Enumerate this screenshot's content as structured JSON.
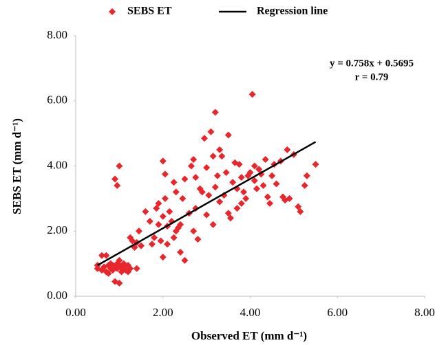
{
  "chart_data": {
    "type": "scatter",
    "x_label": "Observed ET (mm d⁻¹)",
    "y_label": "SEBS ET (mm d⁻¹)",
    "annotations": [
      "y = 0.758x + 0.5695",
      "r = 0.79"
    ],
    "xlim": [
      0,
      8
    ],
    "ylim": [
      0,
      8
    ],
    "xticks": [
      {
        "value": 0,
        "label": "0.00"
      },
      {
        "value": 2,
        "label": "2.00"
      },
      {
        "value": 4,
        "label": "4.00"
      },
      {
        "value": 6,
        "label": "6.00"
      },
      {
        "value": 8,
        "label": "8.00"
      }
    ],
    "yticks": [
      {
        "value": 0,
        "label": "0.00"
      },
      {
        "value": 2,
        "label": "2.00"
      },
      {
        "value": 4,
        "label": "4.00"
      },
      {
        "value": 6,
        "label": "6.00"
      },
      {
        "value": 8,
        "label": "8.00"
      }
    ],
    "grid": false,
    "legend": "top",
    "series": [
      {
        "name": "SEBS ET",
        "color": "#e8262b",
        "marker": "diamond",
        "x": [
          0.5,
          0.5,
          0.6,
          0.65,
          0.7,
          0.7,
          0.75,
          0.75,
          0.8,
          0.8,
          0.85,
          0.85,
          0.9,
          0.9,
          0.95,
          0.95,
          1.0,
          1.0,
          1.0,
          1.05,
          1.05,
          1.1,
          1.1,
          1.15,
          1.2,
          1.2,
          1.25,
          0.6,
          0.9,
          0.95,
          1.0,
          1.25,
          1.3,
          1.35,
          1.4,
          1.4,
          1.45,
          1.5,
          1.6,
          1.7,
          1.75,
          1.8,
          1.85,
          1.9,
          1.9,
          1.95,
          2.0,
          2.0,
          2.0,
          2.05,
          2.05,
          2.1,
          2.1,
          2.15,
          2.2,
          2.25,
          2.25,
          2.3,
          2.3,
          2.35,
          2.4,
          2.4,
          2.45,
          2.5,
          2.5,
          2.6,
          2.65,
          2.7,
          2.7,
          2.75,
          2.75,
          2.8,
          2.85,
          2.9,
          2.95,
          3.0,
          3.0,
          3.05,
          3.1,
          3.15,
          3.15,
          3.2,
          3.2,
          3.25,
          3.3,
          3.3,
          3.35,
          3.4,
          3.45,
          3.5,
          3.5,
          3.55,
          3.6,
          3.65,
          3.7,
          3.7,
          3.75,
          3.8,
          3.8,
          3.85,
          3.9,
          3.95,
          4.0,
          4.05,
          4.1,
          4.1,
          4.15,
          4.2,
          4.25,
          4.3,
          4.35,
          4.4,
          4.45,
          4.5,
          4.55,
          4.6,
          4.7,
          4.75,
          4.8,
          4.85,
          4.9,
          5.0,
          5.1,
          5.15,
          5.25,
          5.3,
          5.5
        ],
        "values": [
          0.95,
          0.85,
          0.8,
          0.9,
          1.25,
          0.75,
          0.95,
          0.7,
          0.85,
          1.0,
          0.8,
          0.95,
          0.9,
          0.45,
          0.85,
          1.0,
          0.4,
          0.95,
          1.1,
          0.85,
          0.75,
          1.0,
          0.9,
          0.8,
          0.95,
          0.75,
          0.85,
          1.25,
          3.6,
          3.4,
          4.0,
          1.8,
          1.7,
          1.5,
          1.65,
          0.85,
          2.0,
          1.55,
          2.6,
          2.3,
          1.6,
          1.8,
          2.7,
          2.85,
          2.2,
          1.7,
          4.15,
          1.2,
          2.45,
          3.75,
          3.0,
          1.6,
          2.15,
          2.6,
          2.3,
          3.5,
          1.8,
          3.2,
          2.0,
          2.1,
          1.35,
          2.2,
          3.0,
          3.6,
          1.1,
          2.55,
          4.0,
          4.2,
          2.0,
          3.65,
          2.7,
          1.75,
          3.3,
          3.2,
          4.85,
          2.5,
          3.95,
          3.1,
          5.05,
          2.2,
          4.3,
          5.65,
          3.35,
          3.7,
          4.5,
          2.9,
          4.3,
          3.1,
          3.8,
          4.95,
          2.55,
          2.4,
          3.5,
          4.1,
          2.7,
          3.3,
          4.05,
          3.65,
          2.85,
          3.2,
          3.0,
          3.7,
          3.8,
          6.2,
          3.55,
          4.0,
          3.3,
          3.9,
          3.75,
          3.4,
          4.2,
          3.05,
          2.85,
          3.7,
          4.05,
          3.45,
          4.15,
          3.05,
          2.95,
          4.5,
          3.0,
          4.35,
          2.75,
          2.6,
          3.4,
          3.7,
          4.05
        ]
      },
      {
        "name": "Regression line",
        "color": "#000000",
        "type": "line",
        "x": [
          0.5,
          5.5
        ],
        "values": [
          0.95,
          4.74
        ]
      }
    ]
  }
}
